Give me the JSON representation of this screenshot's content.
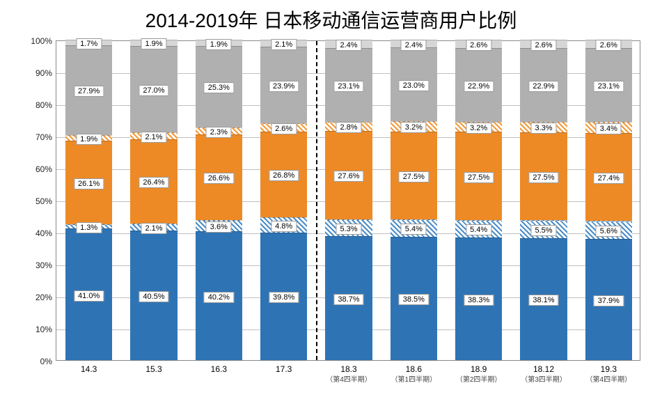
{
  "title": "2014-2019年 日本移动通信运营商用户比例",
  "chart": {
    "type": "stacked-bar-percent",
    "background_color": "#ffffff",
    "grid_color": "#bfbfbf",
    "border_color": "#888888",
    "ylim": [
      0,
      100
    ],
    "ytick_step": 10,
    "yticks": [
      "0%",
      "10%",
      "20%",
      "30%",
      "40%",
      "50%",
      "60%",
      "70%",
      "80%",
      "90%",
      "100%"
    ],
    "bar_width_ratio": 0.72,
    "label_fontsize": 11,
    "tick_fontsize": 12,
    "title_fontsize": 28,
    "divider_after_index": 3,
    "colors": {
      "blue_solid": "#2e74b5",
      "blue_hatch": "#4a8cc7",
      "orange_solid": "#ed8a26",
      "orange_hatch": "#f39a3a",
      "grey_solid": "#b0b0b0",
      "grey_light": "#d6d6d6"
    },
    "categories": [
      {
        "label": "14.3",
        "sub": ""
      },
      {
        "label": "15.3",
        "sub": ""
      },
      {
        "label": "16.3",
        "sub": ""
      },
      {
        "label": "17.3",
        "sub": ""
      },
      {
        "label": "18.3",
        "sub": "（第4四半期）"
      },
      {
        "label": "18.6",
        "sub": "（第1四半期）"
      },
      {
        "label": "18.9",
        "sub": "（第2四半期）"
      },
      {
        "label": "18.12",
        "sub": "（第3四半期）"
      },
      {
        "label": "19.3",
        "sub": "（第4四半期）"
      }
    ],
    "series": [
      {
        "key": "blue_solid",
        "style": "solid",
        "color": "#2e74b5",
        "values": [
          41.0,
          40.5,
          40.2,
          39.8,
          38.7,
          38.5,
          38.3,
          38.1,
          37.9
        ]
      },
      {
        "key": "blue_hatch",
        "style": "hatch-blue",
        "color": "#4a8cc7",
        "values": [
          1.3,
          2.1,
          3.6,
          4.8,
          5.3,
          5.4,
          5.4,
          5.5,
          5.6
        ]
      },
      {
        "key": "orange_solid",
        "style": "solid",
        "color": "#ed8a26",
        "values": [
          26.1,
          26.4,
          26.6,
          26.8,
          27.6,
          27.5,
          27.5,
          27.5,
          27.4
        ]
      },
      {
        "key": "orange_hatch",
        "style": "hatch-orange",
        "color": "#f39a3a",
        "values": [
          1.9,
          2.1,
          2.3,
          2.6,
          2.8,
          3.2,
          3.2,
          3.3,
          3.4
        ]
      },
      {
        "key": "grey_solid",
        "style": "solid",
        "color": "#b0b0b0",
        "values": [
          27.9,
          27.0,
          25.3,
          23.9,
          23.1,
          23.0,
          22.9,
          22.9,
          23.1
        ]
      },
      {
        "key": "grey_light",
        "style": "solid",
        "color": "#d6d6d6",
        "values": [
          1.7,
          1.9,
          1.9,
          2.1,
          2.4,
          2.4,
          2.6,
          2.6,
          2.6
        ]
      }
    ]
  }
}
